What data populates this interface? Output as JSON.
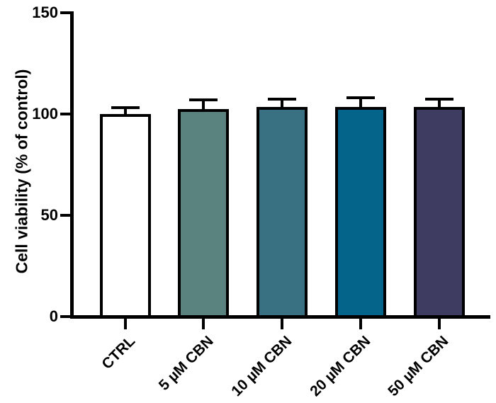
{
  "chart_data": {
    "type": "bar",
    "title": "",
    "ylabel": "Cell viability (% of control)",
    "xlabel": "",
    "ylim": [
      0,
      150
    ],
    "yticks": [
      0,
      50,
      100,
      150
    ],
    "grid": false,
    "legend": "none",
    "categories": [
      "CTRL",
      "5 µM CBN",
      "10 µM CBN",
      "20 µM CBN",
      "50 µM CBN"
    ],
    "series": [
      {
        "name": "Cell viability (% of control)",
        "values": [
          100,
          102.5,
          103.5,
          103.5,
          103.5
        ],
        "errors_upper": [
          3,
          4.5,
          4,
          4.5,
          4
        ]
      }
    ],
    "bar_fill_colors": [
      "#FFFFFF",
      "#5A827E",
      "#397182",
      "#05648A",
      "#3E3C61"
    ],
    "bar_border_color": "#000000",
    "axis_color": "#000000",
    "background_color": "#FFFFFF"
  }
}
